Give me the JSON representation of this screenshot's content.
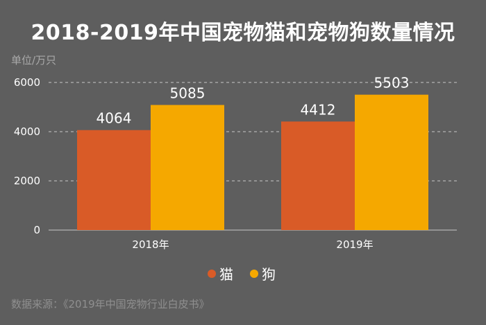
{
  "title": "2018-2019年中国宠物猫和宠物狗数量情况",
  "unit_label": "单位/万只",
  "source": "数据来源：《2019年中国宠物行业白皮书》",
  "colors": {
    "background": "#5e5e5e",
    "cat": "#d95b27",
    "dog": "#f5a800",
    "grid": "#c8c8c8",
    "axis": "#c8c8c8"
  },
  "chart_data": {
    "type": "bar",
    "categories": [
      "2018年",
      "2019年"
    ],
    "series": [
      {
        "name": "猫",
        "values": [
          4064,
          4412
        ]
      },
      {
        "name": "狗",
        "values": [
          5085,
          5503
        ]
      }
    ],
    "ylim": [
      0,
      6000
    ],
    "yticks": [
      "0",
      "2000",
      "4000",
      "6000"
    ],
    "ytick_values": [
      0,
      2000,
      4000,
      6000
    ],
    "grid": true,
    "legend_position": "bottom-center"
  }
}
